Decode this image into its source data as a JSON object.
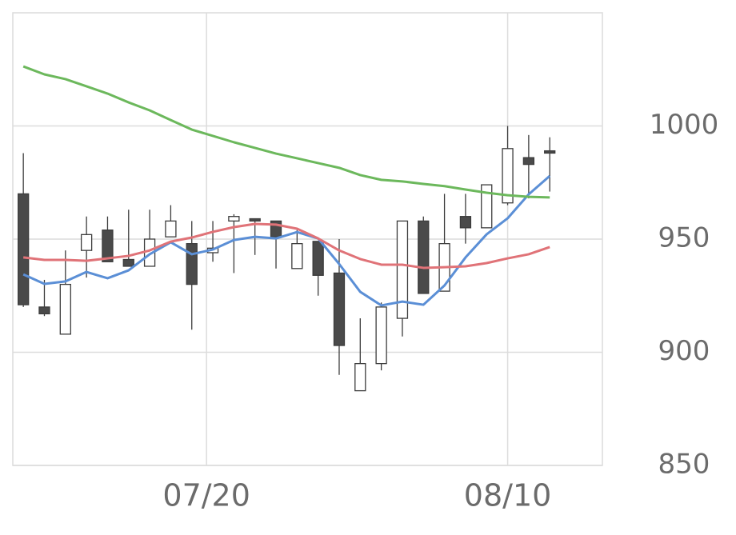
{
  "chart_data": {
    "type": "candlestick",
    "x": [
      0,
      1,
      2,
      3,
      4,
      5,
      6,
      7,
      8,
      9,
      10,
      11,
      12,
      13,
      14,
      15,
      16,
      17,
      18,
      19,
      20,
      21,
      22,
      23,
      24,
      25
    ],
    "xlim": [
      -0.5,
      27.5
    ],
    "xticks": [
      {
        "value": 8.7,
        "label": "07/20"
      },
      {
        "value": 23,
        "label": "08/10"
      }
    ],
    "ylim": [
      850,
      1050
    ],
    "yticks": [
      850,
      900,
      950,
      1000
    ],
    "grid": true,
    "up_color": "#ffffff",
    "down_color": "#4a4a4a",
    "edge_color": "#3c3c3c",
    "open": [
      970,
      920,
      908,
      945,
      954,
      941,
      938,
      951,
      948,
      944,
      958,
      959,
      958,
      937,
      949,
      935,
      883,
      895,
      915,
      958,
      927,
      960,
      955,
      966,
      986,
      989
    ],
    "high": [
      988,
      932,
      945,
      960,
      960,
      963,
      963,
      965,
      958,
      958,
      961,
      959,
      958,
      954,
      949,
      950,
      915,
      922,
      958,
      960,
      970,
      970,
      974,
      1000,
      996,
      995
    ],
    "low": [
      920,
      916,
      908,
      933,
      940,
      938,
      938,
      951,
      910,
      940,
      935,
      943,
      937,
      937,
      925,
      890,
      883,
      892,
      907,
      926,
      927,
      948,
      955,
      965,
      968,
      971
    ],
    "close": [
      921,
      917,
      930,
      952,
      940,
      938,
      950,
      958,
      930,
      946,
      960,
      958,
      951,
      948,
      934,
      903,
      895,
      920,
      958,
      926,
      948,
      955,
      974,
      990,
      983,
      988
    ],
    "series": [
      {
        "color": "#5b8fd6",
        "values": [
          934.4,
          930.2,
          931.3,
          935.5,
          932.7,
          936.2,
          943.3,
          948.6,
          943.3,
          945.4,
          949.6,
          951,
          950.3,
          953.1,
          950.3,
          939,
          926.7,
          920.7,
          922.4,
          921,
          929.5,
          941.9,
          952.1,
          959.2,
          969.8,
          977.9
        ]
      },
      {
        "color": "#e07378",
        "values": [
          941.9,
          940.8,
          940.8,
          940.4,
          941.5,
          942.6,
          945,
          948.9,
          950.7,
          953.2,
          955.3,
          956.7,
          956.4,
          954.6,
          950.3,
          945,
          941.2,
          938.7,
          938.7,
          937.3,
          937.6,
          938,
          939.4,
          941.5,
          943.3,
          946.5
        ]
      },
      {
        "color": "#6cb85c",
        "values": [
          1026.3,
          1022.8,
          1020.7,
          1017.5,
          1014.3,
          1010.4,
          1006.9,
          1002.6,
          998.4,
          995.6,
          992.8,
          990.3,
          987.8,
          985.7,
          983.6,
          981.5,
          978.3,
          976.2,
          975.5,
          974.4,
          973.4,
          971.9,
          970.5,
          969.4,
          968.7,
          968.4
        ]
      }
    ]
  }
}
